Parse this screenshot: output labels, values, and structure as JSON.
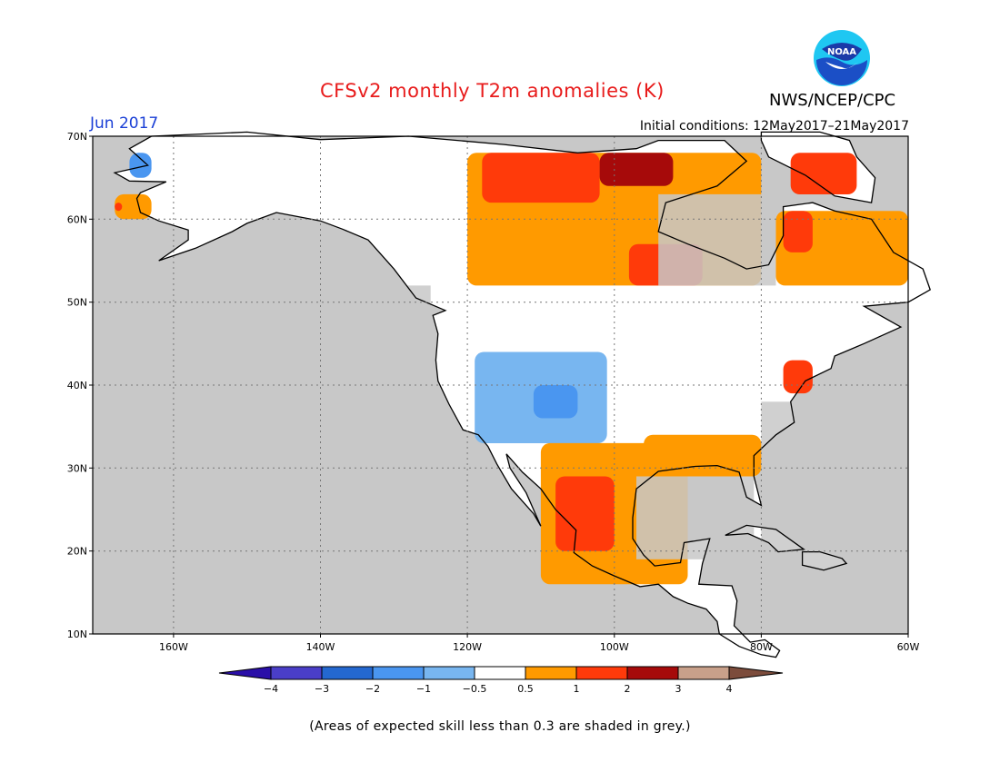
{
  "title": "CFSv2 monthly T2m anomalies (K)",
  "agency": "NWS/NCEP/CPC",
  "logo_text": "NOAA",
  "month": "Jun 2017",
  "initial_conditions": "Initial conditions: 12May2017–21May2017",
  "footnote": "(Areas of expected skill less than 0.3 are shaded in grey.)",
  "map": {
    "lat_labels": [
      "70N",
      "60N",
      "50N",
      "40N",
      "30N",
      "20N",
      "10N"
    ],
    "lon_labels": [
      "160W",
      "140W",
      "120W",
      "100W",
      "80W",
      "60W"
    ],
    "lat_values": [
      70,
      60,
      50,
      40,
      30,
      20,
      10
    ],
    "lon_values": [
      -160,
      -140,
      -120,
      -100,
      -80,
      -60
    ],
    "lon_range": [
      -171,
      -60
    ],
    "lat_range": [
      10,
      70
    ],
    "land_color": "#ffffff",
    "low_skill_color": "#c8c8c8",
    "anomaly_regions": [
      {
        "name": "alaska-west-warm",
        "category": "0.5",
        "lon": [
          -168,
          -163
        ],
        "lat": [
          60,
          63
        ]
      },
      {
        "name": "alaska-interior-cold",
        "category": "-1",
        "lon": [
          -166,
          -163
        ],
        "lat": [
          65,
          68
        ]
      },
      {
        "name": "bering-warm",
        "category": "1",
        "lon": [
          -168,
          -167
        ],
        "lat": [
          61,
          62
        ]
      },
      {
        "name": "northern-canada-warm",
        "category": "0.5",
        "lon": [
          -120,
          -80
        ],
        "lat": [
          52,
          68
        ]
      },
      {
        "name": "hudson-west-warm",
        "category": "1",
        "lon": [
          -118,
          -102
        ],
        "lat": [
          62,
          68
        ]
      },
      {
        "name": "nunavut-hot",
        "category": "2",
        "lon": [
          -102,
          -92
        ],
        "lat": [
          64,
          68
        ]
      },
      {
        "name": "ontario-warm",
        "category": "1",
        "lon": [
          -98,
          -88
        ],
        "lat": [
          52,
          57
        ]
      },
      {
        "name": "baffin-warm",
        "category": "1",
        "lon": [
          -76,
          -67
        ],
        "lat": [
          63,
          68
        ]
      },
      {
        "name": "labrador-warm",
        "category": "0.5",
        "lon": [
          -78,
          -60
        ],
        "lat": [
          52,
          61
        ]
      },
      {
        "name": "quebec-warm",
        "category": "1",
        "lon": [
          -77,
          -73
        ],
        "lat": [
          56,
          61
        ]
      },
      {
        "name": "rockies-cool",
        "category": "-0.5",
        "lon": [
          -119,
          -101
        ],
        "lat": [
          33,
          44
        ]
      },
      {
        "name": "southwest-cool",
        "category": "-1",
        "lon": [
          -111,
          -105
        ],
        "lat": [
          36,
          40
        ]
      },
      {
        "name": "mexico-warm",
        "category": "0.5",
        "lon": [
          -110,
          -90
        ],
        "lat": [
          16,
          33
        ]
      },
      {
        "name": "mexico-hot",
        "category": "1",
        "lon": [
          -108,
          -100
        ],
        "lat": [
          20,
          29
        ]
      },
      {
        "name": "gulf-coast-warm",
        "category": "0.5",
        "lon": [
          -96,
          -80
        ],
        "lat": [
          29,
          34
        ]
      },
      {
        "name": "northeast-warm",
        "category": "1",
        "lon": [
          -77,
          -73
        ],
        "lat": [
          39,
          43
        ]
      }
    ],
    "low_skill_regions": [
      {
        "name": "pacific-ocean",
        "lon": [
          -171,
          -125
        ],
        "lat": [
          10,
          52
        ]
      },
      {
        "name": "atlantic-ocean",
        "lon": [
          -80,
          -60
        ],
        "lat": [
          10,
          38
        ]
      },
      {
        "name": "gulf-of-mexico",
        "lon": [
          -97,
          -81
        ],
        "lat": [
          19,
          29
        ]
      },
      {
        "name": "hudson-bay",
        "lon": [
          -94,
          -78
        ],
        "lat": [
          52,
          63
        ]
      }
    ]
  },
  "colorbar": {
    "labels": [
      "−4",
      "−3",
      "−2",
      "−1",
      "−0.5",
      "0.5",
      "1",
      "2",
      "3",
      "4"
    ],
    "colors": [
      "#2a0fa8",
      "#4a3ec8",
      "#2468d0",
      "#4a96f0",
      "#78b6f0",
      "#ffffff",
      "#ff9a00",
      "#ff3a0a",
      "#a60a0a",
      "#c8a08a",
      "#7c4c3c"
    ]
  }
}
